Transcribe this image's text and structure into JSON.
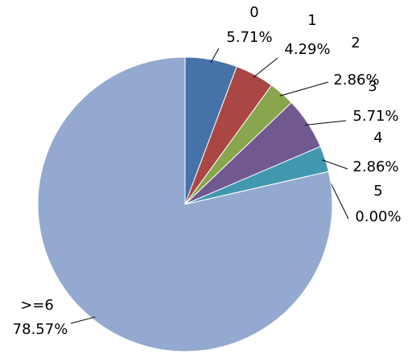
{
  "chart_data": {
    "type": "pie",
    "categories": [
      "0",
      "1",
      "2",
      "3",
      "4",
      "5",
      ">=6"
    ],
    "values": [
      5.71,
      4.29,
      2.86,
      5.71,
      2.86,
      0.0,
      78.57
    ],
    "value_labels": [
      "5.71%",
      "4.29%",
      "2.86%",
      "5.71%",
      "2.86%",
      "0.00%",
      "78.57%"
    ],
    "colors": [
      "#4572a7",
      "#aa4643",
      "#89a54e",
      "#71588f",
      "#4198af",
      "#db843d",
      "#93a9cf"
    ]
  }
}
